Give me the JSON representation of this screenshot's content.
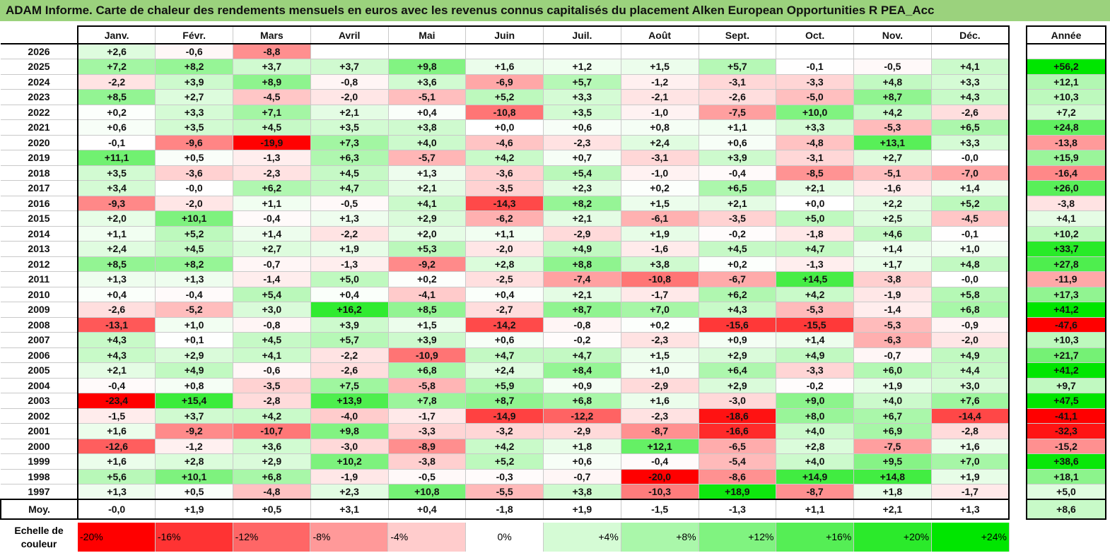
{
  "title": "ADAM Informe. Carte de chaleur des rendements mensuels en euros avec les revenus connus capitalisés du placement Alken European Opportunities R PEA_Acc",
  "chart_data": {
    "type": "heatmap",
    "title": "ADAM Informe. Carte de chaleur des rendements mensuels en euros avec les revenus connus capitalisés du placement Alken European Opportunities R PEA_Acc",
    "months": [
      "Janv.",
      "Févr.",
      "Mars",
      "Avril",
      "Mai",
      "Juin",
      "Juil.",
      "Août",
      "Sept.",
      "Oct.",
      "Nov.",
      "Déc."
    ],
    "annual_header": "Année",
    "rows": [
      {
        "year": "2026",
        "values": [
          "+2,6",
          "-0,6",
          "-8,8",
          "",
          "",
          "",
          "",
          "",
          "",
          "",
          "",
          ""
        ],
        "annual": ""
      },
      {
        "year": "2025",
        "values": [
          "+7,2",
          "+8,2",
          "+3,7",
          "+3,7",
          "+9,8",
          "+1,6",
          "+1,2",
          "+1,5",
          "+5,7",
          "-0,1",
          "-0,5",
          "+4,1"
        ],
        "annual": "+56,2"
      },
      {
        "year": "2024",
        "values": [
          "-2,2",
          "+3,9",
          "+8,9",
          "-0,8",
          "+3,6",
          "-6,9",
          "+5,7",
          "-1,2",
          "-3,1",
          "-3,3",
          "+4,8",
          "+3,3"
        ],
        "annual": "+12,1"
      },
      {
        "year": "2023",
        "values": [
          "+8,5",
          "+2,7",
          "-4,5",
          "-2,0",
          "-5,1",
          "+5,2",
          "+3,3",
          "-2,1",
          "-2,6",
          "-5,0",
          "+8,7",
          "+4,3"
        ],
        "annual": "+10,3"
      },
      {
        "year": "2022",
        "values": [
          "+0,2",
          "+3,3",
          "+7,1",
          "+2,1",
          "+0,4",
          "-10,8",
          "+3,5",
          "-1,0",
          "-7,5",
          "+10,0",
          "+4,2",
          "-2,6"
        ],
        "annual": "+7,2"
      },
      {
        "year": "2021",
        "values": [
          "+0,6",
          "+3,5",
          "+4,5",
          "+3,5",
          "+3,8",
          "+0,0",
          "+0,6",
          "+0,8",
          "+1,1",
          "+3,3",
          "-5,3",
          "+6,5"
        ],
        "annual": "+24,8"
      },
      {
        "year": "2020",
        "values": [
          "-0,1",
          "-9,6",
          "-19,9",
          "+7,3",
          "+4,0",
          "-4,6",
          "-2,3",
          "+2,4",
          "+0,6",
          "-4,8",
          "+13,1",
          "+3,3"
        ],
        "annual": "-13,8"
      },
      {
        "year": "2019",
        "values": [
          "+11,1",
          "+0,5",
          "-1,3",
          "+6,3",
          "-5,7",
          "+4,2",
          "+0,7",
          "-3,1",
          "+3,9",
          "-3,1",
          "+2,7",
          "-0,0"
        ],
        "annual": "+15,9"
      },
      {
        "year": "2018",
        "values": [
          "+3,5",
          "-3,6",
          "-2,3",
          "+4,5",
          "+1,3",
          "-3,6",
          "+5,4",
          "-1,0",
          "-0,4",
          "-8,5",
          "-5,1",
          "-7,0"
        ],
        "annual": "-16,4"
      },
      {
        "year": "2017",
        "values": [
          "+3,4",
          "-0,0",
          "+6,2",
          "+4,7",
          "+2,1",
          "-3,5",
          "+2,3",
          "+0,2",
          "+6,5",
          "+2,1",
          "-1,6",
          "+1,4"
        ],
        "annual": "+26,0"
      },
      {
        "year": "2016",
        "values": [
          "-9,3",
          "-2,0",
          "+1,1",
          "-0,5",
          "+4,1",
          "-14,3",
          "+8,2",
          "+1,5",
          "+2,1",
          "+0,0",
          "+2,2",
          "+5,2"
        ],
        "annual": "-3,8"
      },
      {
        "year": "2015",
        "values": [
          "+2,0",
          "+10,1",
          "-0,4",
          "+1,3",
          "+2,9",
          "-6,2",
          "+2,1",
          "-6,1",
          "-3,5",
          "+5,0",
          "+2,5",
          "-4,5"
        ],
        "annual": "+4,1"
      },
      {
        "year": "2014",
        "values": [
          "+1,1",
          "+5,2",
          "+1,4",
          "-2,2",
          "+2,0",
          "+1,1",
          "-2,9",
          "+1,9",
          "-0,2",
          "-1,8",
          "+4,6",
          "-0,1"
        ],
        "annual": "+10,2"
      },
      {
        "year": "2013",
        "values": [
          "+2,4",
          "+4,5",
          "+2,7",
          "+1,9",
          "+5,3",
          "-2,0",
          "+4,9",
          "-1,6",
          "+4,5",
          "+4,7",
          "+1,4",
          "+1,0"
        ],
        "annual": "+33,7"
      },
      {
        "year": "2012",
        "values": [
          "+8,5",
          "+8,2",
          "-0,7",
          "-1,3",
          "-9,2",
          "+2,8",
          "+8,8",
          "+3,8",
          "+0,2",
          "-1,3",
          "+1,7",
          "+4,8"
        ],
        "annual": "+27,8"
      },
      {
        "year": "2011",
        "values": [
          "+1,3",
          "+1,3",
          "-1,4",
          "+5,0",
          "+0,2",
          "-2,5",
          "-7,4",
          "-10,8",
          "-6,7",
          "+14,5",
          "-3,8",
          "-0,0"
        ],
        "annual": "-11,9"
      },
      {
        "year": "2010",
        "values": [
          "+0,4",
          "-0,4",
          "+5,4",
          "+0,4",
          "-4,1",
          "+0,4",
          "+2,1",
          "-1,7",
          "+6,2",
          "+4,2",
          "-1,9",
          "+5,8"
        ],
        "annual": "+17,3"
      },
      {
        "year": "2009",
        "values": [
          "-2,6",
          "-5,2",
          "+3,0",
          "+16,2",
          "+8,5",
          "-2,7",
          "+8,7",
          "+7,0",
          "+4,3",
          "-5,3",
          "-1,4",
          "+6,8"
        ],
        "annual": "+41,2"
      },
      {
        "year": "2008",
        "values": [
          "-13,1",
          "+1,0",
          "-0,8",
          "+3,9",
          "+1,5",
          "-14,2",
          "-0,8",
          "+0,2",
          "-15,6",
          "-15,5",
          "-5,3",
          "-0,9"
        ],
        "annual": "-47,6"
      },
      {
        "year": "2007",
        "values": [
          "+4,3",
          "+0,1",
          "+4,5",
          "+5,7",
          "+3,9",
          "+0,6",
          "-0,2",
          "-2,3",
          "+0,9",
          "+1,4",
          "-6,3",
          "-2,0"
        ],
        "annual": "+10,3"
      },
      {
        "year": "2006",
        "values": [
          "+4,3",
          "+2,9",
          "+4,1",
          "-2,2",
          "-10,9",
          "+4,7",
          "+4,7",
          "+1,5",
          "+2,9",
          "+4,9",
          "-0,7",
          "+4,9"
        ],
        "annual": "+21,7"
      },
      {
        "year": "2005",
        "values": [
          "+2,1",
          "+4,9",
          "-0,6",
          "-2,6",
          "+6,8",
          "+2,4",
          "+8,4",
          "+1,0",
          "+6,4",
          "-3,3",
          "+6,0",
          "+4,4"
        ],
        "annual": "+41,2"
      },
      {
        "year": "2004",
        "values": [
          "-0,4",
          "+0,8",
          "-3,5",
          "+7,5",
          "-5,8",
          "+5,9",
          "+0,9",
          "-2,9",
          "+2,9",
          "-0,2",
          "+1,9",
          "+3,0"
        ],
        "annual": "+9,7"
      },
      {
        "year": "2003",
        "values": [
          "-23,4",
          "+15,4",
          "-2,8",
          "+13,9",
          "+7,8",
          "+8,7",
          "+6,8",
          "+1,6",
          "-3,0",
          "+9,0",
          "+4,0",
          "+7,6"
        ],
        "annual": "+47,5"
      },
      {
        "year": "2002",
        "values": [
          "-1,5",
          "+3,7",
          "+4,2",
          "-4,0",
          "-1,7",
          "-14,9",
          "-12,2",
          "-2,3",
          "-18,6",
          "+8,0",
          "+6,7",
          "-14,4"
        ],
        "annual": "-41,1"
      },
      {
        "year": "2001",
        "values": [
          "+1,6",
          "-9,2",
          "-10,7",
          "+9,8",
          "-3,3",
          "-3,2",
          "-2,9",
          "-8,7",
          "-16,6",
          "+4,0",
          "+6,9",
          "-2,8"
        ],
        "annual": "-32,3"
      },
      {
        "year": "2000",
        "values": [
          "-12,6",
          "-1,2",
          "+3,6",
          "-3,0",
          "-8,9",
          "+4,2",
          "+1,8",
          "+12,1",
          "-6,5",
          "+2,8",
          "-7,5",
          "+1,6"
        ],
        "annual": "-15,2"
      },
      {
        "year": "1999",
        "values": [
          "+1,6",
          "+2,8",
          "+2,9",
          "+10,2",
          "-3,8",
          "+5,2",
          "+0,6",
          "-0,4",
          "-5,4",
          "+4,0",
          "+9,5",
          "+7,0"
        ],
        "annual": "+38,6"
      },
      {
        "year": "1998",
        "values": [
          "+5,6",
          "+10,1",
          "+6,8",
          "-1,9",
          "-0,5",
          "-0,3",
          "-0,7",
          "-20,0",
          "-8,6",
          "+14,9",
          "+14,8",
          "+1,9"
        ],
        "annual": "+18,1"
      },
      {
        "year": "1997",
        "values": [
          "+1,3",
          "+0,5",
          "-4,8",
          "+2,3",
          "+10,8",
          "-5,5",
          "+3,8",
          "-10,3",
          "+18,9",
          "-8,7",
          "+1,8",
          "-1,7"
        ],
        "annual": "+5,0"
      }
    ],
    "average": {
      "label": "Moy.",
      "values": [
        "-0,0",
        "+1,9",
        "+0,5",
        "+3,1",
        "+0,4",
        "-1,8",
        "+1,9",
        "-1,5",
        "-1,3",
        "+1,1",
        "+2,1",
        "+1,3"
      ],
      "annual": "+8,6"
    },
    "scale": {
      "label_line1": "Echelle de",
      "label_line2": "couleur",
      "steps": [
        "-20%",
        "-16%",
        "-12%",
        "-8%",
        "-4%",
        "0%",
        "+4%",
        "+8%",
        "+12%",
        "+16%",
        "+20%",
        "+24%"
      ]
    }
  },
  "colors": {
    "title_bar": "#9bd27d",
    "red_full": "#ff0000",
    "green_full": "#00e600",
    "neutral": "#ffffff"
  }
}
